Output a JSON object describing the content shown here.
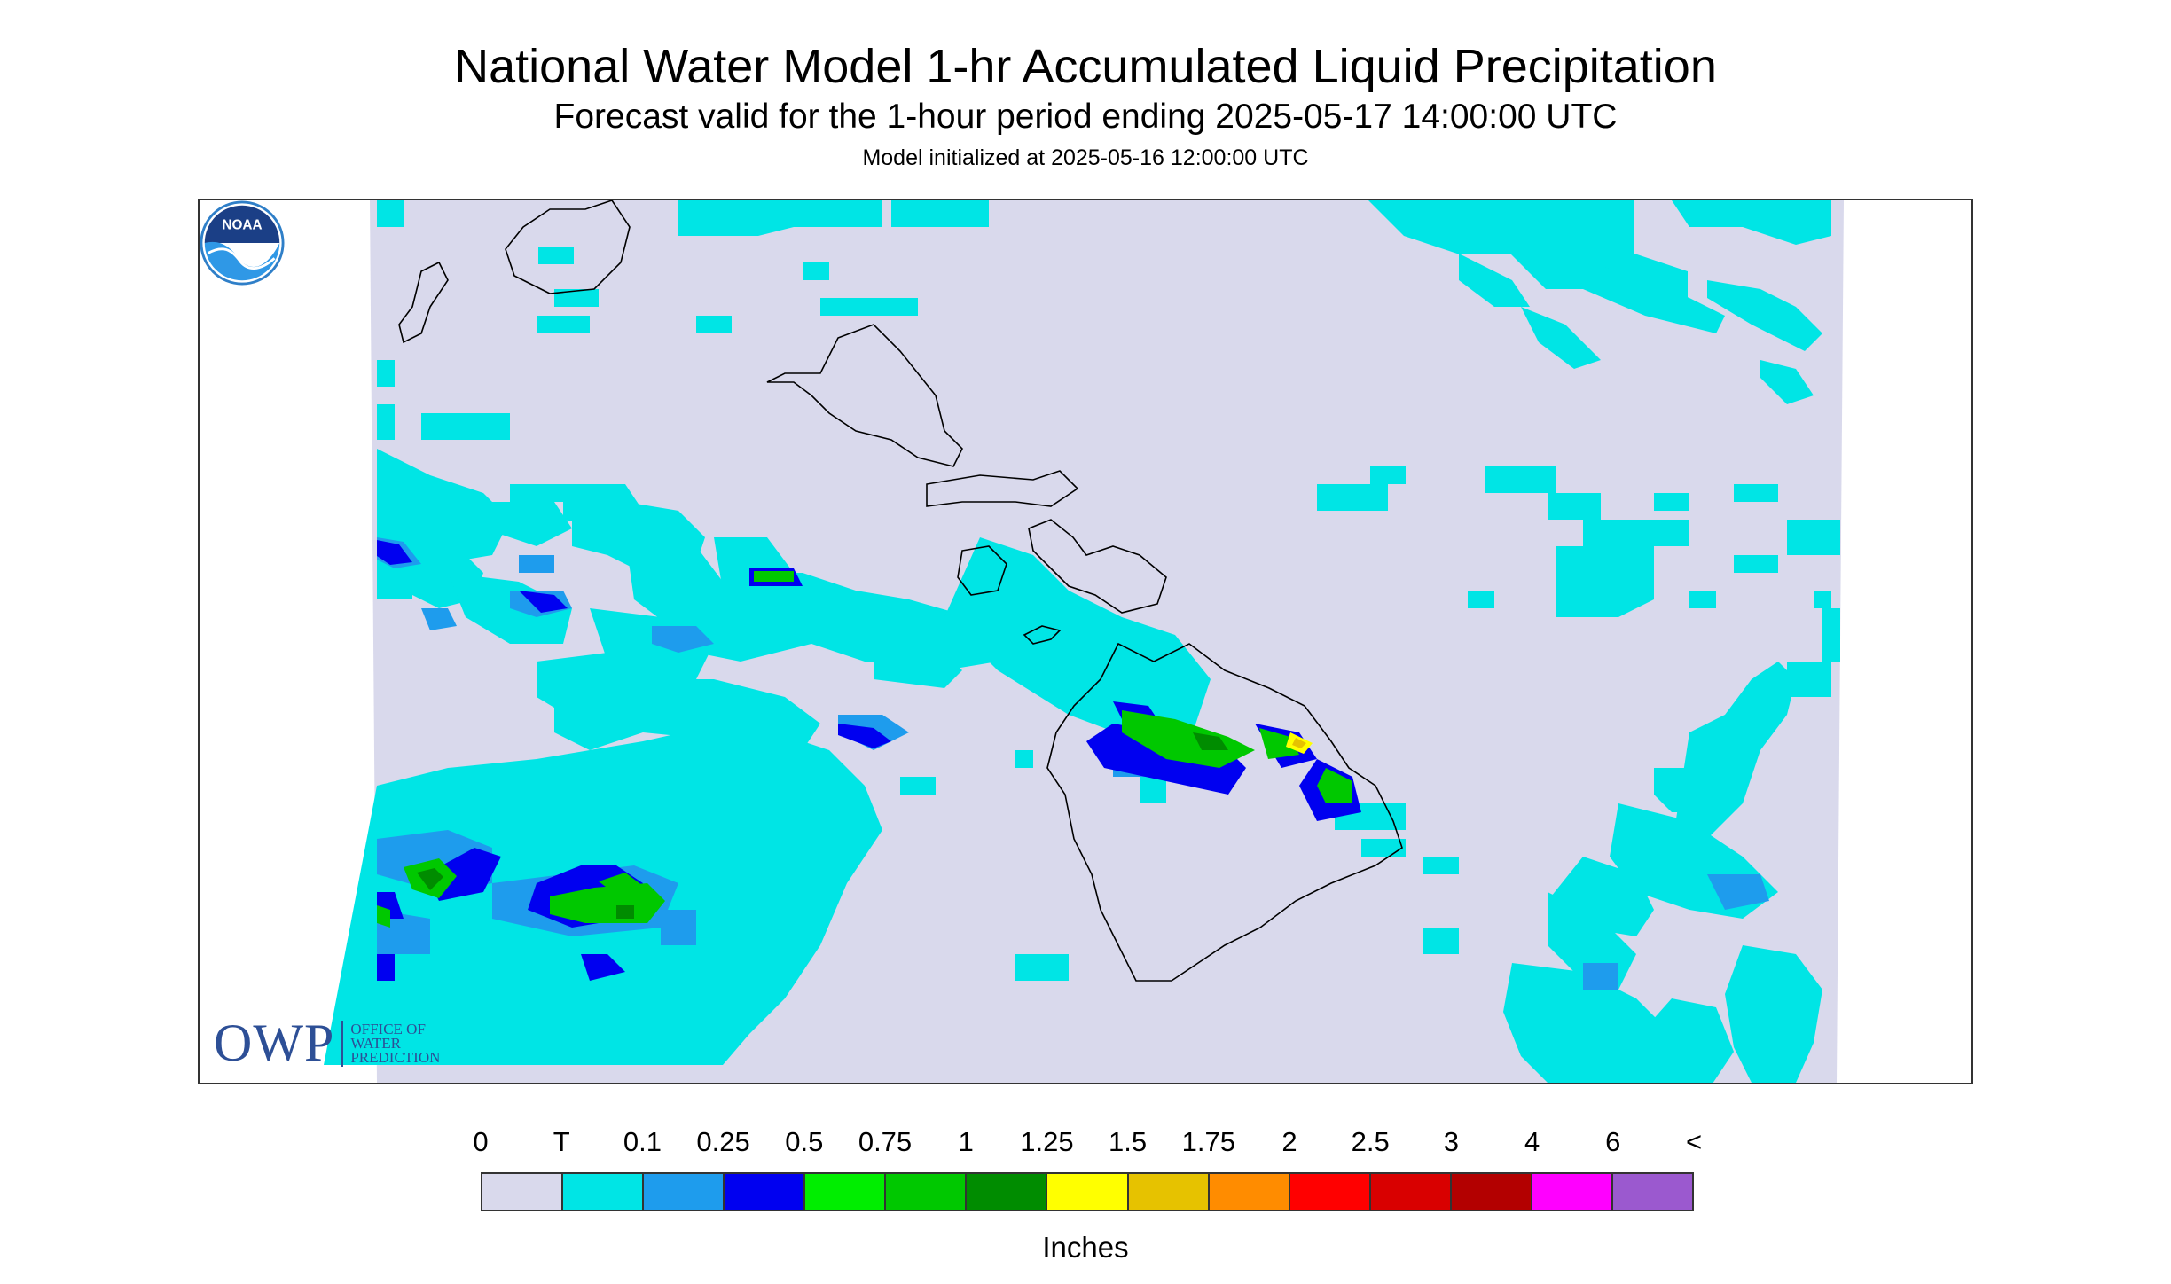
{
  "header": {
    "title": "National Water Model 1-hr Accumulated Liquid Precipitation",
    "subtitle": "Forecast valid for the 1-hour period ending 2025-05-17 14:00:00 UTC",
    "init": "Model initialized at 2025-05-16 12:00:00 UTC"
  },
  "logos": {
    "owp_big": "OWP",
    "owp_line1": "Office of",
    "owp_line2": "Water",
    "owp_line3": "Prediction",
    "noaa": "NOAA"
  },
  "legend": {
    "labels": [
      "0",
      "T",
      "0.1",
      "0.25",
      "0.5",
      "0.75",
      "1",
      "1.25",
      "1.5",
      "1.75",
      "2",
      "2.5",
      "3",
      "4",
      "6",
      "<"
    ],
    "colors": [
      "#d9d9ec",
      "#00e5e5",
      "#1e9ced",
      "#0000f0",
      "#00ee00",
      "#00c800",
      "#008c00",
      "#ffff00",
      "#e6c200",
      "#ff8c00",
      "#ff0000",
      "#d90000",
      "#b30000",
      "#ff00ff",
      "#9b59cf"
    ],
    "units": "Inches"
  },
  "map": {
    "background_color": "#d9d9ec",
    "outline_color": "#000000"
  }
}
